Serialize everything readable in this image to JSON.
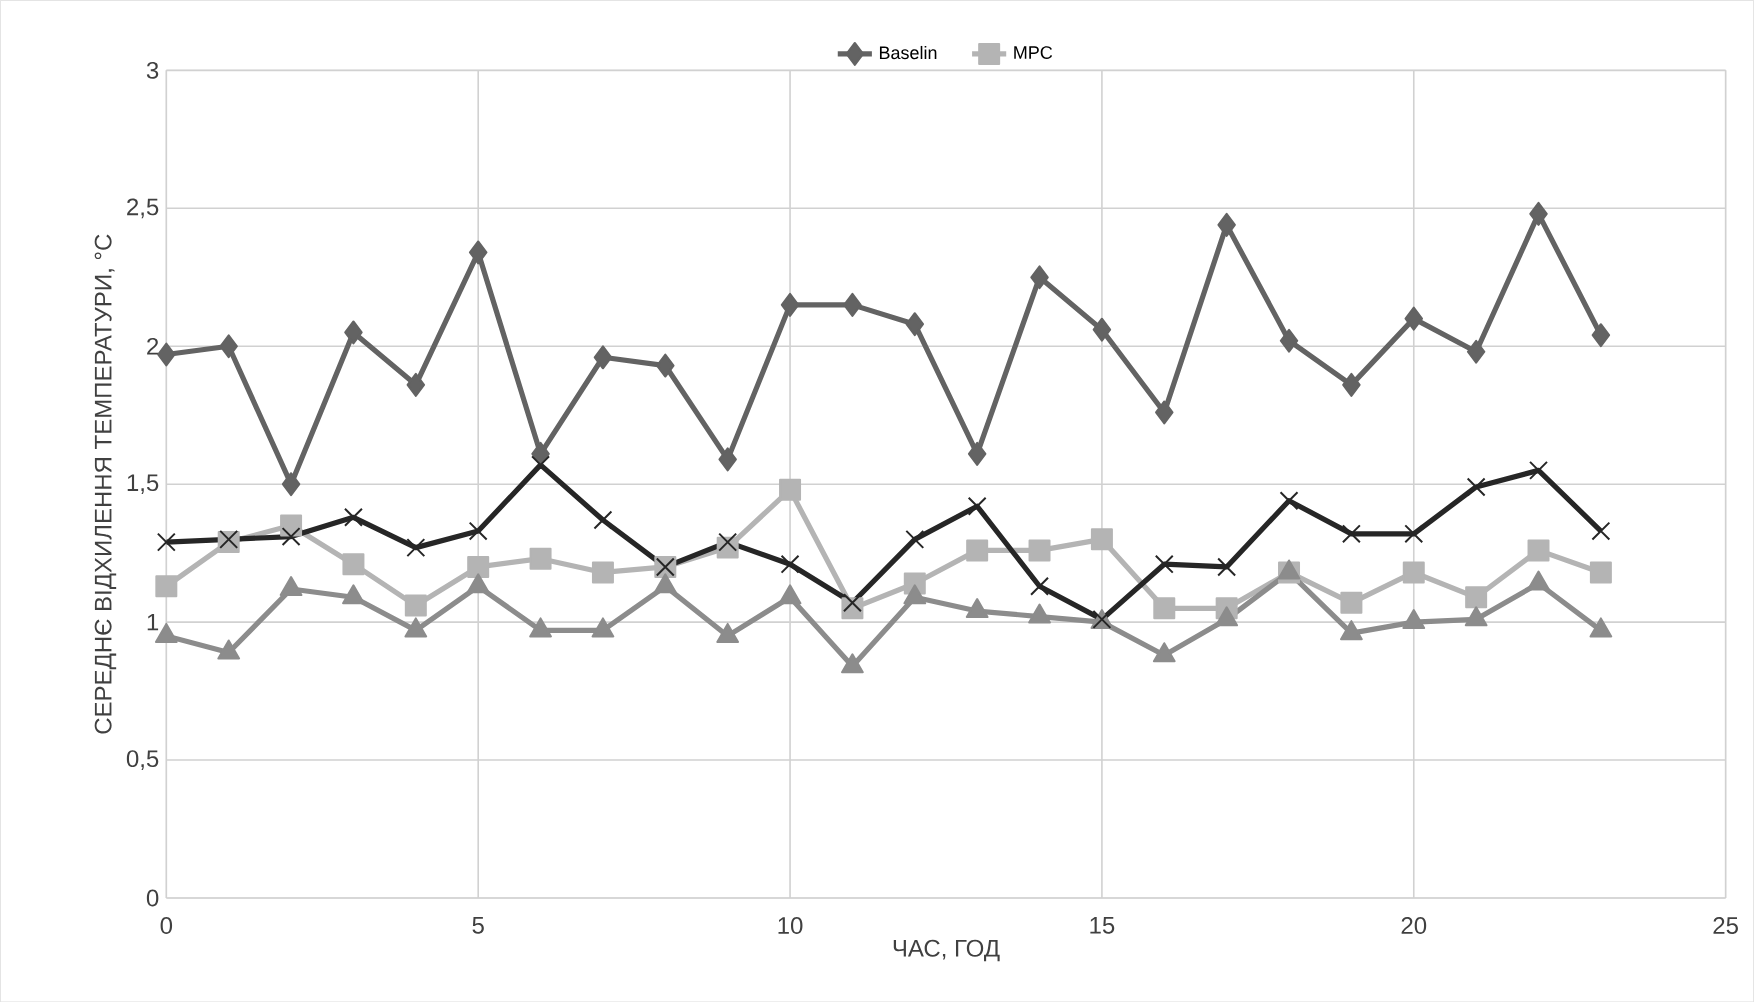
{
  "chart_data": {
    "type": "line",
    "xlabel": "ЧАС, ГОД",
    "ylabel": "СЕРЕДНЄ ВІДХИЛЕННЯ ТЕМПЕРАТУРИ, °С",
    "x": [
      0,
      1,
      2,
      3,
      4,
      5,
      6,
      7,
      8,
      9,
      10,
      11,
      12,
      13,
      14,
      15,
      16,
      17,
      18,
      19,
      20,
      21,
      22,
      23
    ],
    "xlim": [
      0,
      25
    ],
    "xticks": [
      0,
      5,
      10,
      15,
      20,
      25
    ],
    "ylim": [
      0,
      3
    ],
    "yticks": [
      0,
      {
        "value": 0.5,
        "label": "0,5"
      },
      1,
      {
        "value": 1.5,
        "label": "1,5"
      },
      2,
      {
        "value": 2.5,
        "label": "2,5"
      },
      3
    ],
    "grid": true,
    "legend": "top",
    "line_style": "solid",
    "series": [
      {
        "name": "Baselin",
        "color": "#636363",
        "marker": "diamond",
        "values": [
          1.97,
          2.0,
          1.5,
          2.05,
          1.86,
          2.34,
          1.61,
          1.96,
          1.93,
          1.59,
          2.15,
          2.15,
          2.08,
          1.61,
          2.25,
          2.06,
          1.76,
          2.44,
          2.02,
          1.86,
          2.1,
          1.98,
          2.48,
          2.04
        ]
      },
      {
        "name": "MPC",
        "color": "#b4b4b4",
        "marker": "square",
        "values": [
          1.13,
          1.29,
          1.35,
          1.21,
          1.06,
          1.2,
          1.23,
          1.18,
          1.2,
          1.27,
          1.48,
          1.05,
          1.14,
          1.26,
          1.26,
          1.3,
          1.05,
          1.05,
          1.18,
          1.07,
          1.18,
          1.09,
          1.26,
          1.18
        ]
      },
      {
        "color": "#8c8c8c",
        "marker": "triangle",
        "values": [
          0.95,
          0.89,
          1.12,
          1.09,
          0.97,
          1.13,
          0.97,
          0.97,
          1.13,
          0.95,
          1.09,
          0.84,
          1.09,
          1.04,
          1.02,
          1.0,
          0.88,
          1.01,
          1.18,
          0.96,
          1.0,
          1.01,
          1.14,
          0.97
        ]
      },
      {
        "color": "#262626",
        "marker": "cross",
        "values": [
          1.29,
          1.3,
          1.31,
          1.38,
          1.27,
          1.33,
          1.57,
          1.37,
          1.2,
          1.29,
          1.21,
          1.07,
          1.3,
          1.42,
          1.13,
          1.01,
          1.21,
          1.2,
          1.44,
          1.32,
          1.32,
          1.49,
          1.55,
          1.33
        ]
      }
    ]
  }
}
